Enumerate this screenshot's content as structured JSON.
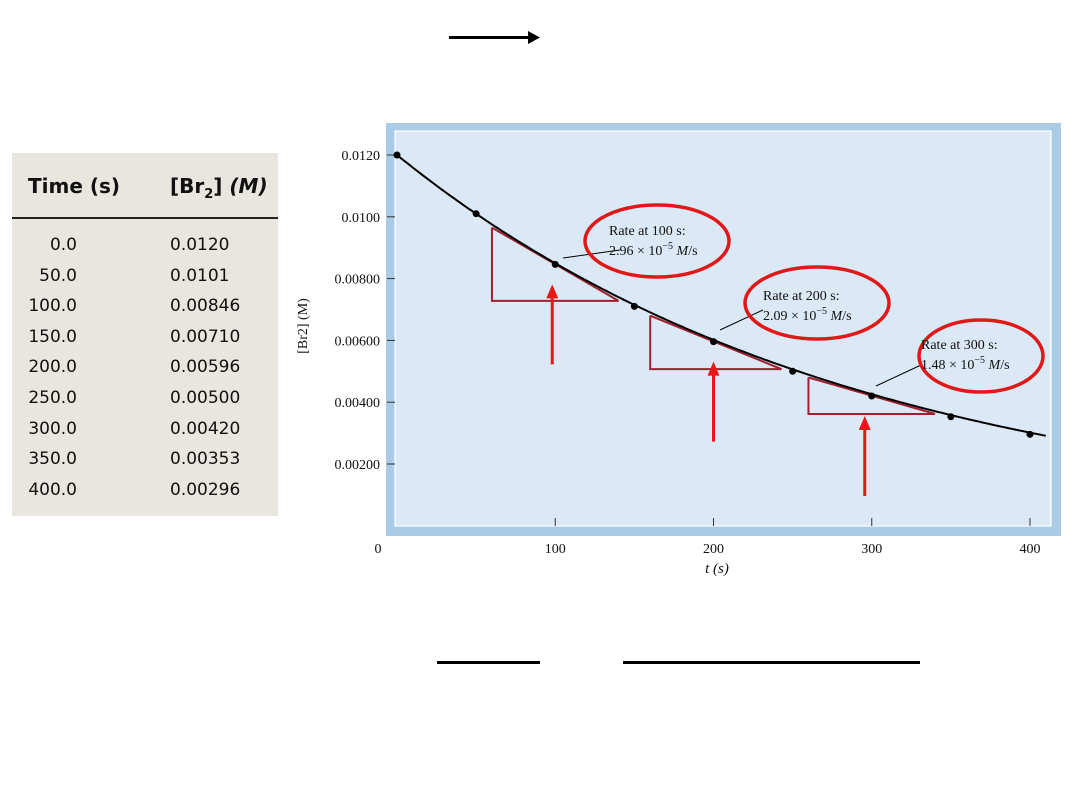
{
  "table": {
    "header_time": "Time (s)",
    "header_conc_main": "[Br",
    "header_conc_sub": "2",
    "header_conc_unit": "(M)",
    "rows": [
      {
        "time": "0.0",
        "conc": "0.0120"
      },
      {
        "time": "50.0",
        "conc": "0.0101"
      },
      {
        "time": "100.0",
        "conc": "0.00846"
      },
      {
        "time": "150.0",
        "conc": "0.00710"
      },
      {
        "time": "200.0",
        "conc": "0.00596"
      },
      {
        "time": "250.0",
        "conc": "0.00500"
      },
      {
        "time": "300.0",
        "conc": "0.00420"
      },
      {
        "time": "350.0",
        "conc": "0.00353"
      },
      {
        "time": "400.0",
        "conc": "0.00296"
      }
    ]
  },
  "chart_data": {
    "type": "line",
    "xlabel": "t (s)",
    "ylabel": "[Br2] (M)",
    "xlim": [
      0,
      410
    ],
    "ylim": [
      0,
      0.0125
    ],
    "x_ticks": [
      0,
      100,
      200,
      300,
      400
    ],
    "x_tick_labels": [
      "0",
      "100",
      "200",
      "300",
      "400"
    ],
    "y_ticks": [
      0.012,
      0.01,
      0.008,
      0.006,
      0.004,
      0.002
    ],
    "y_tick_labels": [
      "0.0120",
      "0.0100",
      "0.00800",
      "0.00600",
      "0.00400",
      "0.00200"
    ],
    "x": [
      0,
      50,
      100,
      150,
      200,
      250,
      300,
      350,
      400
    ],
    "y": [
      0.012,
      0.0101,
      0.00846,
      0.0071,
      0.00596,
      0.005,
      0.0042,
      0.00353,
      0.00296
    ],
    "grid": false,
    "colors": {
      "plot_background": "#dbe9f6",
      "frame": "#a9cbe6",
      "curve": "#000000",
      "tangent": "#a02030",
      "ellipse": "#e01818",
      "arrow": "#e81818"
    },
    "annotations": [
      {
        "t": 100,
        "label_line1": "Rate at 100 s:",
        "label_line2": "2.96 × 10",
        "exponent": "−5",
        "unit": "M/s",
        "tangent_x": [
          60,
          140
        ],
        "tangent_y": [
          0.00965,
          0.00728
        ]
      },
      {
        "t": 200,
        "label_line1": "Rate at 200 s:",
        "label_line2": "2.09 × 10",
        "exponent": "−5",
        "unit": "M/s",
        "tangent_x": [
          160,
          243
        ],
        "tangent_y": [
          0.0068,
          0.00507
        ]
      },
      {
        "t": 300,
        "label_line1": "Rate at 300 s:",
        "label_line2": "1.48 × 10",
        "exponent": "−5",
        "unit": "M/s",
        "tangent_x": [
          260,
          340
        ],
        "tangent_y": [
          0.0048,
          0.00362
        ]
      }
    ]
  }
}
